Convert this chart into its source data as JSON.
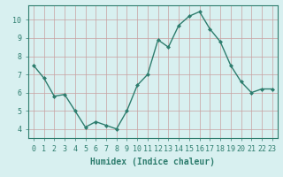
{
  "x": [
    0,
    1,
    2,
    3,
    4,
    5,
    6,
    7,
    8,
    9,
    10,
    11,
    12,
    13,
    14,
    15,
    16,
    17,
    18,
    19,
    20,
    21,
    22,
    23
  ],
  "y": [
    7.5,
    6.8,
    5.8,
    5.9,
    5.0,
    4.1,
    4.4,
    4.2,
    4.0,
    5.0,
    6.4,
    7.0,
    8.9,
    8.5,
    9.7,
    10.2,
    10.45,
    9.5,
    8.8,
    7.5,
    6.6,
    6.0,
    6.2,
    6.2
  ],
  "line_color": "#2e7d6e",
  "marker": "D",
  "marker_size": 2.0,
  "background_color": "#d8f0f0",
  "grid_color": "#c8a0a0",
  "xlabel": "Humidex (Indice chaleur)",
  "xlim": [
    -0.5,
    23.5
  ],
  "ylim": [
    3.5,
    10.8
  ],
  "yticks": [
    4,
    5,
    6,
    7,
    8,
    9,
    10
  ],
  "xticks": [
    0,
    1,
    2,
    3,
    4,
    5,
    6,
    7,
    8,
    9,
    10,
    11,
    12,
    13,
    14,
    15,
    16,
    17,
    18,
    19,
    20,
    21,
    22,
    23
  ],
  "xlabel_fontsize": 7,
  "tick_fontsize": 6,
  "linewidth": 1.0
}
